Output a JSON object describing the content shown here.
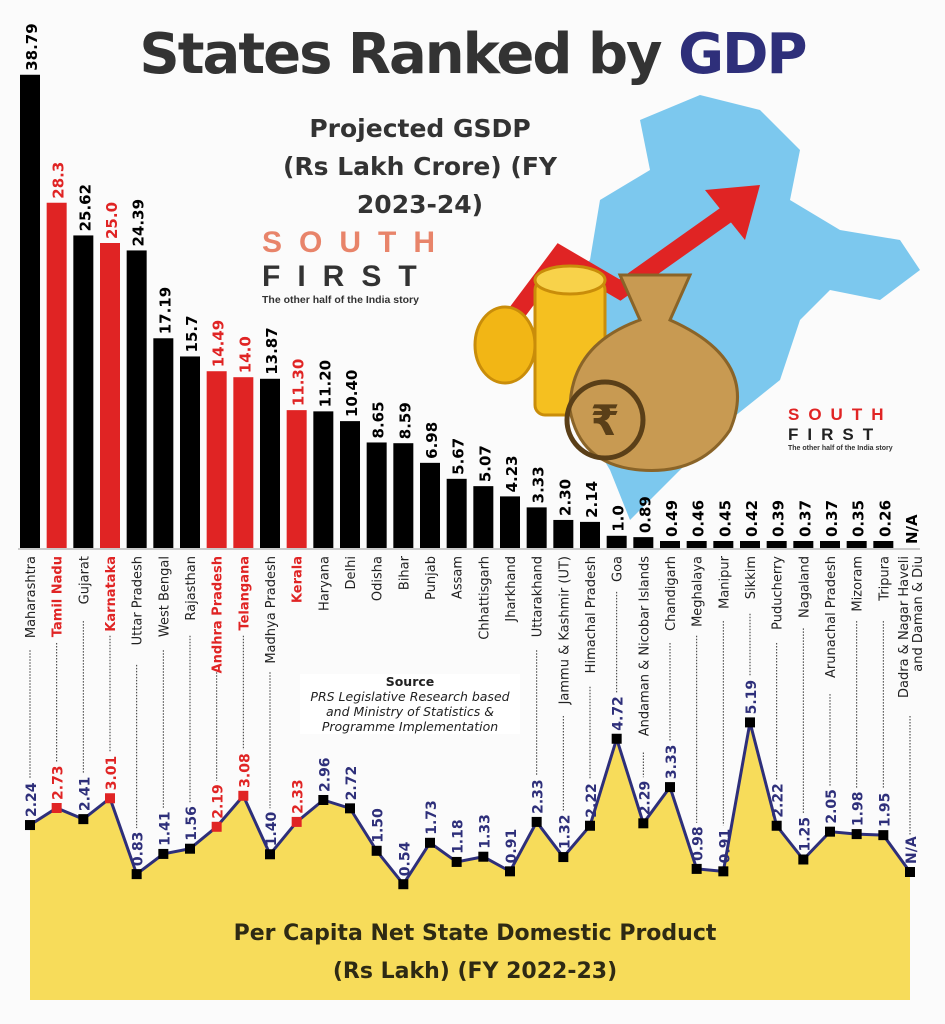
{
  "title": {
    "main": "States Ranked by",
    "accent": "GDP"
  },
  "subtitle": {
    "line1": "Projected GSDP",
    "line2": "(Rs Lakh Crore) (FY 2023-24)"
  },
  "logo": {
    "south": "SOUTH",
    "first": "FIRST",
    "tagline": "The other half of the India story"
  },
  "source": {
    "heading": "Source",
    "text": "PRS Legislative Research based and Ministry of Statistics & Programme Implementation"
  },
  "bottom_title": {
    "line1": "Per Capita Net State Domestic Product",
    "line2": "(Rs Lakh) (FY 2022-23)"
  },
  "colors": {
    "highlight": "#e02424",
    "bar": "#000000",
    "line": "#2e2f7a",
    "area": "#f7dc5a",
    "map": "#7cc8ee"
  },
  "chart_data": [
    {
      "type": "bar",
      "title": "Projected GSDP (Rs Lakh Crore) (FY 2023-24)",
      "categories": [
        "Maharashtra",
        "Tamil Nadu",
        "Gujarat",
        "Karnataka",
        "Uttar Pradesh",
        "West Bengal",
        "Rajasthan",
        "Andhra Pradesh",
        "Telangana",
        "Madhya Pradesh",
        "Kerala",
        "Haryana",
        "Delhi",
        "Odisha",
        "Bihar",
        "Punjab",
        "Assam",
        "Chhattisgarh",
        "Jharkhand",
        "Uttarakhand",
        "Jammu & Kashmir (UT)",
        "Himachal Pradesh",
        "Goa",
        "Andaman & Nicobar Islands",
        "Chandigarh",
        "Meghalaya",
        "Manipur",
        "Sikkim",
        "Puducherry",
        "Nagaland",
        "Arunachal Pradesh",
        "Mizoram",
        "Tripura",
        "Dadra & Nagar Haveli and Daman & Diu"
      ],
      "values": [
        38.79,
        28.3,
        25.62,
        25.0,
        24.39,
        17.19,
        15.7,
        14.49,
        14.0,
        13.87,
        11.3,
        11.2,
        10.4,
        8.65,
        8.59,
        6.98,
        5.67,
        5.07,
        4.23,
        3.33,
        2.3,
        2.14,
        1.0,
        0.89,
        0.49,
        0.46,
        0.45,
        0.42,
        0.39,
        0.37,
        0.37,
        0.35,
        0.26,
        null
      ],
      "value_labels": [
        "38.79",
        "28.3",
        "25.62",
        "25.0",
        "24.39",
        "17.19",
        "15.7",
        "14.49",
        "14.0",
        "13.87",
        "11.30",
        "11.20",
        "10.40",
        "8.65",
        "8.59",
        "6.98",
        "5.67",
        "5.07",
        "4.23",
        "3.33",
        "2.30",
        "2.14",
        "1.0",
        "0.89",
        "0.49",
        "0.46",
        "0.45",
        "0.42",
        "0.39",
        "0.37",
        "0.37",
        "0.35",
        "0.26",
        "N/A"
      ],
      "highlighted": [
        "Tamil Nadu",
        "Karnataka",
        "Andhra Pradesh",
        "Telangana",
        "Kerala"
      ]
    },
    {
      "type": "area",
      "title": "Per Capita Net State Domestic Product (Rs Lakh) (FY 2022-23)",
      "values": [
        2.24,
        2.73,
        2.41,
        3.01,
        0.83,
        1.41,
        1.56,
        2.19,
        3.08,
        1.4,
        2.33,
        2.96,
        2.72,
        1.5,
        0.54,
        1.73,
        1.18,
        1.33,
        0.91,
        2.33,
        1.32,
        2.22,
        4.72,
        2.29,
        3.33,
        0.98,
        0.91,
        5.19,
        2.22,
        1.25,
        2.05,
        1.98,
        1.95,
        null
      ],
      "value_labels": [
        "2.24",
        "2.73",
        "2.41",
        "3.01",
        "0.83",
        "1.41",
        "1.56",
        "2.19",
        "3.08",
        "1.40",
        "2.33",
        "2.96",
        "2.72",
        "1.50",
        "0.54",
        "1.73",
        "1.18",
        "1.33",
        "0.91",
        "2.33",
        "1.32",
        "2.22",
        "4.72",
        "2.29",
        "3.33",
        "0.98",
        "0.91",
        "5.19",
        "2.22",
        "1.25",
        "2.05",
        "1.98",
        "1.95",
        "N/A"
      ]
    }
  ]
}
